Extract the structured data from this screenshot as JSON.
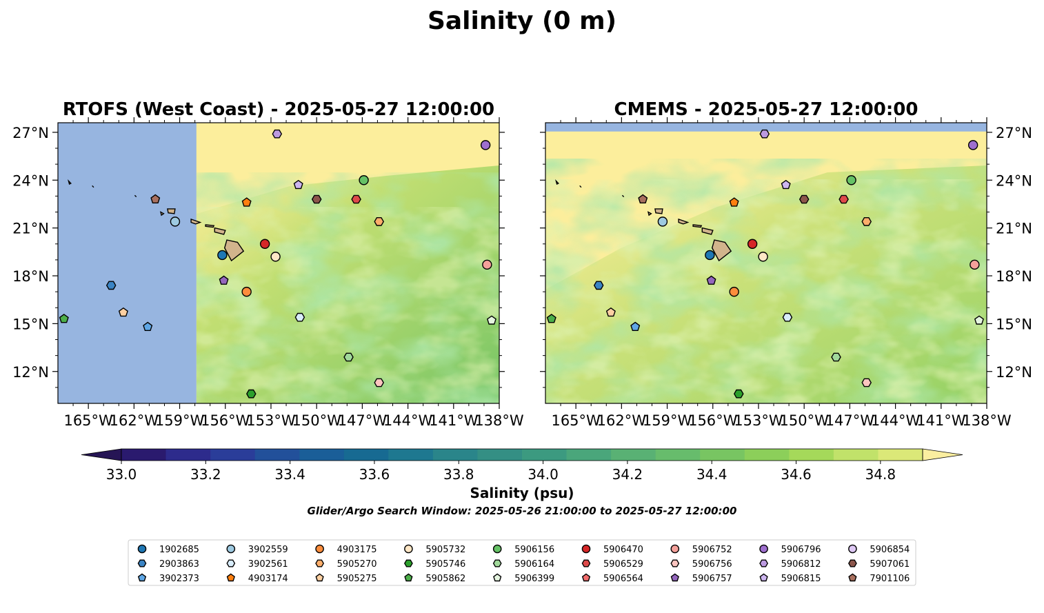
{
  "chart_data": {
    "type": "heatmap",
    "title": "Salinity (0 m)",
    "panels": [
      {
        "title": "RTOFS (West Coast) - 2025-05-27 12:00:00",
        "x_ticks": [
          "165°W",
          "162°W",
          "159°W",
          "156°W",
          "153°W",
          "150°W",
          "147°W",
          "144°W",
          "141°W",
          "138°W"
        ],
        "y_ticks": [
          "27°N",
          "24°N",
          "21°N",
          "18°N",
          "15°N",
          "12°N"
        ],
        "xlim": [
          -167.0,
          -138.0
        ],
        "ylim": [
          10.0,
          27.6
        ],
        "no_data_west_of_lon": -157.9,
        "y_axis_side": "left"
      },
      {
        "title": "CMEMS - 2025-05-27 12:00:00",
        "x_ticks": [
          "165°W",
          "162°W",
          "159°W",
          "156°W",
          "153°W",
          "150°W",
          "147°W",
          "144°W",
          "141°W",
          "138°W"
        ],
        "y_ticks": [
          "27°N",
          "24°N",
          "21°N",
          "18°N",
          "15°N",
          "12°N"
        ],
        "xlim": [
          -167.0,
          -138.0
        ],
        "ylim": [
          10.0,
          27.6
        ],
        "no_data_north_of_lat": 27.05,
        "y_axis_side": "right"
      }
    ],
    "colorbar": {
      "label": "Salinity (psu)",
      "min": 33.0,
      "max": 34.9,
      "step": 0.1,
      "ticks": [
        "33.0",
        "33.2",
        "33.4",
        "33.6",
        "33.8",
        "34.0",
        "34.2",
        "34.4",
        "34.6",
        "34.8"
      ],
      "extend": "both",
      "colormap": "summer-like",
      "colors": [
        "#2a1a6e",
        "#2d2b8c",
        "#2a3d99",
        "#22509a",
        "#1a5e98",
        "#176a92",
        "#1e7890",
        "#2a858a",
        "#348f84",
        "#3c9a80",
        "#4aa67b",
        "#59b174",
        "#67bc6c",
        "#78c562",
        "#8ccf5a",
        "#a5d95a",
        "#c1e26a",
        "#dbe878"
      ],
      "under_color": "#261555",
      "over_color": "#fbeea0"
    },
    "note": "Glider/Argo Search Window: 2025-05-26 21:00:00 to 2025-05-27 12:00:00",
    "land_color": "#d2b48c",
    "no_data_color": "#97b5e0",
    "legend_placement": "bottom",
    "floats": [
      {
        "id": "1902685",
        "marker": "circle",
        "color": "#1f77b4",
        "lon": -156.2,
        "lat": 19.3
      },
      {
        "id": "2903863",
        "marker": "hexagon",
        "color": "#3b84c4",
        "lon": -163.5,
        "lat": 17.4
      },
      {
        "id": "3902373",
        "marker": "pentagon",
        "color": "#5fa7e6",
        "lon": -161.1,
        "lat": 14.8
      },
      {
        "id": "3902559",
        "marker": "circle",
        "color": "#9ecae1",
        "lon": -159.3,
        "lat": 21.4
      },
      {
        "id": "3902561",
        "marker": "hexagon",
        "color": "#d8ecfa",
        "lon": -151.1,
        "lat": 15.4
      },
      {
        "id": "4903174",
        "marker": "pentagon",
        "color": "#ff7f0e",
        "lon": -154.6,
        "lat": 22.6
      },
      {
        "id": "4903175",
        "marker": "circle",
        "color": "#fd8d3c",
        "lon": -154.6,
        "lat": 17.0
      },
      {
        "id": "5905270",
        "marker": "hexagon",
        "color": "#fdae6b",
        "lon": -145.9,
        "lat": 21.4
      },
      {
        "id": "5905275",
        "marker": "pentagon",
        "color": "#fdd0a2",
        "lon": -162.7,
        "lat": 15.7
      },
      {
        "id": "5905732",
        "marker": "circle",
        "color": "#ffe7c6",
        "lon": -152.7,
        "lat": 19.2
      },
      {
        "id": "5905746",
        "marker": "hexagon",
        "color": "#2ca02c",
        "lon": -154.3,
        "lat": 10.6
      },
      {
        "id": "5905862",
        "marker": "pentagon",
        "color": "#4daf4a",
        "lon": -166.6,
        "lat": 15.3
      },
      {
        "id": "5906156",
        "marker": "circle",
        "color": "#66c266",
        "lon": -146.9,
        "lat": 24.0
      },
      {
        "id": "5906164",
        "marker": "hexagon",
        "color": "#a1d99b",
        "lon": -147.9,
        "lat": 12.9
      },
      {
        "id": "5906399",
        "marker": "pentagon",
        "color": "#e5f5e0",
        "lon": -138.5,
        "lat": 15.2
      },
      {
        "id": "5906470",
        "marker": "circle",
        "color": "#d62728",
        "lon": -153.4,
        "lat": 20.0
      },
      {
        "id": "5906529",
        "marker": "hexagon",
        "color": "#de4a4a",
        "lon": -147.4,
        "lat": 22.8
      },
      {
        "id": "5906564",
        "marker": "pentagon",
        "color": "#f26c6c",
        "lon": -147.4,
        "lat": 22.8
      },
      {
        "id": "5906752",
        "marker": "circle",
        "color": "#f4a09a",
        "lon": -138.8,
        "lat": 18.7
      },
      {
        "id": "5906756",
        "marker": "hexagon",
        "color": "#fcc5c0",
        "lon": -145.9,
        "lat": 11.3
      },
      {
        "id": "5906757",
        "marker": "pentagon",
        "color": "#9467bd",
        "lon": -156.1,
        "lat": 17.7
      },
      {
        "id": "5906796",
        "marker": "circle",
        "color": "#9e6fce",
        "lon": -138.9,
        "lat": 26.2
      },
      {
        "id": "5906812",
        "marker": "hexagon",
        "color": "#bc9ae0",
        "lon": -152.6,
        "lat": 26.9
      },
      {
        "id": "5906815",
        "marker": "pentagon",
        "color": "#cdb6f0",
        "lon": -151.2,
        "lat": 23.7
      },
      {
        "id": "5906854",
        "marker": "circle",
        "color": "#dec8f4",
        "lon": -151.2,
        "lat": 23.7
      },
      {
        "id": "5907061",
        "marker": "hexagon",
        "color": "#8c564b",
        "lon": -150.0,
        "lat": 22.8
      },
      {
        "id": "7901106",
        "marker": "pentagon",
        "color": "#a9705f",
        "lon": -160.6,
        "lat": 22.8
      }
    ],
    "visible_floats": [
      "1902685",
      "2903863",
      "3902373",
      "3902559",
      "3902561",
      "4903174",
      "4903175",
      "5905270",
      "5905275",
      "5905732",
      "5905746",
      "5905862",
      "5906156",
      "5906164",
      "5906399",
      "5906470",
      "5906529",
      "5906752",
      "5906756",
      "5906757",
      "5906796",
      "5906812",
      "5906815",
      "5907061",
      "7901106"
    ]
  }
}
